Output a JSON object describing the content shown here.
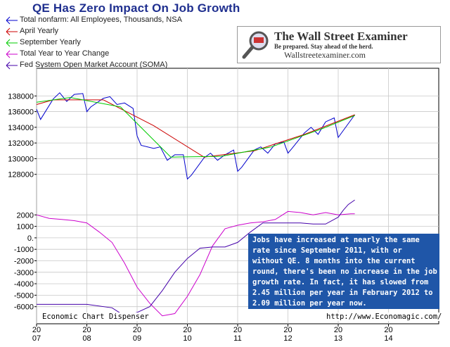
{
  "title": "QE Has Zero Impact On Job Growth",
  "legend": [
    {
      "label": "Total nonfarm: All Employees, Thousands, NSA",
      "color": "#0000cc",
      "icon": "arrow-left-line"
    },
    {
      "label": "April Yearly",
      "color": "#cc0000",
      "icon": "arrow-left-line"
    },
    {
      "label": "September Yearly",
      "color": "#00cc00",
      "icon": "arrow-left-line"
    },
    {
      "label": "Total Year to Year Change",
      "color": "#cc00cc",
      "icon": "arrow-left-line"
    },
    {
      "label": "Fed System Open Market Account (SOMA)",
      "color": "#4400aa",
      "icon": "arrow-left-line"
    }
  ],
  "logo": {
    "name": "The Wall Street Examiner",
    "tagline": "Be prepared. Stay ahead of the herd.",
    "site": "Wallstreetexaminer.com",
    "icon": "magnifier-icon"
  },
  "annotation": "Jobs have increased at nearly the same\nrate since September 2011, with or\nwithout QE. 8 months into the current\nround, there's been no increase in the job\ngrowth rate. In fact, it has slowed from\n2.45 million per year in February 2012 to\n2.09 million per year now.",
  "credits": {
    "left": "Economic Chart Dispenser",
    "right": "http://www.Economagic.com/"
  },
  "chart_data": [
    {
      "type": "line",
      "title": "",
      "ylim": [
        126000,
        140000
      ],
      "yticks": [
        128000,
        130000,
        132000,
        134000,
        136000,
        138000
      ],
      "ytick_labels": [
        "128000",
        "130000",
        "132000",
        "134000",
        "136000",
        "138000"
      ],
      "xlim": [
        2007.0,
        2015.0
      ],
      "series": [
        {
          "name": "Total nonfarm: All Employees, Thousands, NSA",
          "color": "#0000cc",
          "x": [
            2007.0,
            2007.08,
            2007.33,
            2007.46,
            2007.6,
            2007.75,
            2007.92,
            2008.0,
            2008.08,
            2008.33,
            2008.46,
            2008.6,
            2008.75,
            2008.92,
            2009.0,
            2009.08,
            2009.33,
            2009.46,
            2009.6,
            2009.75,
            2009.92,
            2010.0,
            2010.08,
            2010.33,
            2010.46,
            2010.6,
            2010.75,
            2010.92,
            2011.0,
            2011.08,
            2011.33,
            2011.46,
            2011.6,
            2011.75,
            2011.92,
            2012.0,
            2012.08,
            2012.33,
            2012.46,
            2012.6,
            2012.75,
            2012.92,
            2013.0,
            2013.08,
            2013.33
          ],
          "y": [
            136300,
            135000,
            137600,
            138400,
            137300,
            138200,
            138300,
            136000,
            136600,
            137700,
            137900,
            136900,
            137100,
            136400,
            132900,
            131700,
            131300,
            131500,
            129800,
            130500,
            130500,
            127400,
            127900,
            130100,
            130700,
            129800,
            130500,
            131100,
            128400,
            128900,
            131100,
            131500,
            130700,
            131900,
            132100,
            130700,
            131300,
            133300,
            134000,
            133100,
            134700,
            135200,
            132700,
            133400,
            135600
          ]
        },
        {
          "name": "April Yearly",
          "color": "#cc0000",
          "x": [
            2007.0,
            2007.33,
            2008.33,
            2009.33,
            2010.33,
            2011.33,
            2012.33,
            2013.33
          ],
          "y": [
            136900,
            137500,
            137500,
            134200,
            130200,
            131000,
            133100,
            135600
          ]
        },
        {
          "name": "September Yearly",
          "color": "#00cc00",
          "x": [
            2007.0,
            2007.67,
            2008.67,
            2009.67,
            2010.67,
            2011.67,
            2012.67,
            2013.33
          ],
          "y": [
            137200,
            137800,
            136600,
            130200,
            130300,
            131500,
            133800,
            135500
          ]
        }
      ]
    },
    {
      "type": "line",
      "title": "",
      "ylim": [
        -7000,
        3000
      ],
      "yticks": [
        -6000,
        -5000,
        -4000,
        -3000,
        -2000,
        -1000,
        0,
        1000,
        2000
      ],
      "ytick_labels": [
        "-6000",
        "-5000",
        "-4000",
        "-3000",
        "-2000",
        "-1000",
        "0.",
        "1000",
        "2000"
      ],
      "xlim": [
        2007.0,
        2015.0
      ],
      "series": [
        {
          "name": "Total Year to Year Change",
          "color": "#cc00cc",
          "x": [
            2007.0,
            2007.25,
            2007.5,
            2007.75,
            2008.0,
            2008.25,
            2008.5,
            2008.75,
            2009.0,
            2009.25,
            2009.5,
            2009.75,
            2010.0,
            2010.25,
            2010.5,
            2010.75,
            2011.0,
            2011.25,
            2011.5,
            2011.75,
            2012.0,
            2012.25,
            2012.5,
            2012.75,
            2013.0,
            2013.25,
            2013.33
          ],
          "y": [
            2000,
            1700,
            1600,
            1500,
            1300,
            500,
            -400,
            -2200,
            -4300,
            -5700,
            -6800,
            -6600,
            -5100,
            -3200,
            -700,
            800,
            1100,
            1300,
            1400,
            1600,
            2300,
            2200,
            2000,
            2200,
            2000,
            2100,
            2100
          ]
        },
        {
          "name": "Fed System Open Market Account (SOMA)",
          "color": "#4400aa",
          "x": [
            2007.0,
            2007.5,
            2008.0,
            2008.5,
            2008.75,
            2009.0,
            2009.25,
            2009.5,
            2009.75,
            2010.0,
            2010.25,
            2010.5,
            2010.75,
            2011.0,
            2011.25,
            2011.5,
            2011.75,
            2012.0,
            2012.25,
            2012.5,
            2012.75,
            2013.0,
            2013.1,
            2013.2,
            2013.33
          ],
          "y": [
            -5800,
            -5800,
            -5800,
            -6100,
            -6800,
            -6500,
            -6000,
            -4600,
            -3000,
            -1800,
            -900,
            -800,
            -800,
            -400,
            500,
            1300,
            1300,
            1300,
            1300,
            1200,
            1200,
            1800,
            2400,
            2900,
            3300
          ]
        }
      ]
    }
  ],
  "x_axis": {
    "ticks": [
      2007,
      2008,
      2009,
      2010,
      2011,
      2012,
      2013,
      2014
    ],
    "top_labels": [
      "20",
      "20",
      "20",
      "20",
      "20",
      "20",
      "20",
      "20"
    ],
    "bottom_labels": [
      "07",
      "08",
      "09",
      "10",
      "11",
      "12",
      "13",
      "14"
    ]
  }
}
